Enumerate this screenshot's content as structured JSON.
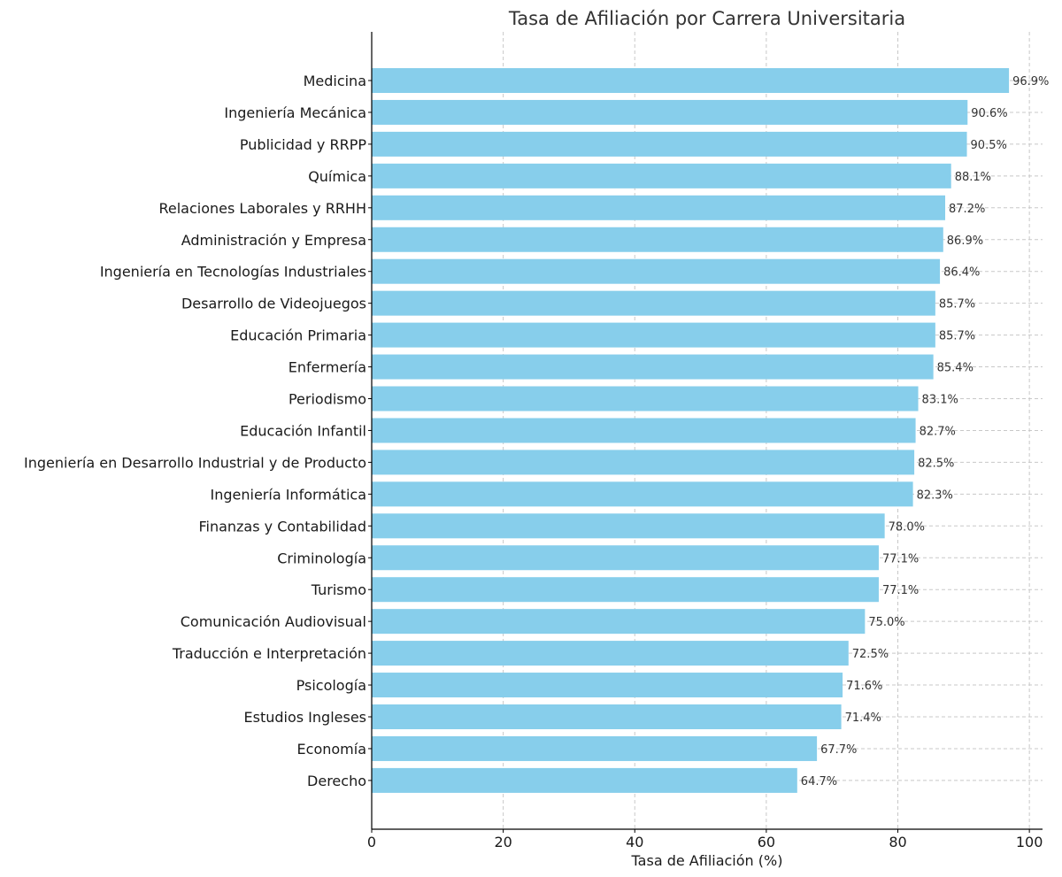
{
  "chart_data": {
    "type": "bar",
    "orientation": "horizontal",
    "title": "Tasa de Afiliación por Carrera Universitaria",
    "xlabel": "Tasa de Afiliación (%)",
    "ylabel": "",
    "xlim": [
      0,
      102
    ],
    "xticks": [
      0,
      20,
      40,
      60,
      80,
      100
    ],
    "grid": true,
    "bar_color": "#87ceeb",
    "value_suffix": "%",
    "categories": [
      "Medicina",
      "Ingeniería Mecánica",
      "Publicidad y RRPP",
      "Química",
      "Relaciones Laborales y RRHH",
      "Administración y Empresa",
      "Ingeniería en Tecnologías Industriales",
      "Desarrollo de Videojuegos",
      "Educación Primaria",
      "Enfermería",
      "Periodismo",
      "Educación Infantil",
      "Ingeniería en Desarrollo Industrial y de Producto",
      "Ingeniería Informática",
      "Finanzas y Contabilidad",
      "Criminología",
      "Turismo",
      "Comunicación Audiovisual",
      "Traducción e Interpretación",
      "Psicología",
      "Estudios Ingleses",
      "Economía",
      "Derecho"
    ],
    "values": [
      96.9,
      90.6,
      90.5,
      88.1,
      87.2,
      86.9,
      86.4,
      85.7,
      85.7,
      85.4,
      83.1,
      82.7,
      82.5,
      82.3,
      78.0,
      77.1,
      77.1,
      75.0,
      72.5,
      71.6,
      71.4,
      67.7,
      64.7
    ]
  }
}
